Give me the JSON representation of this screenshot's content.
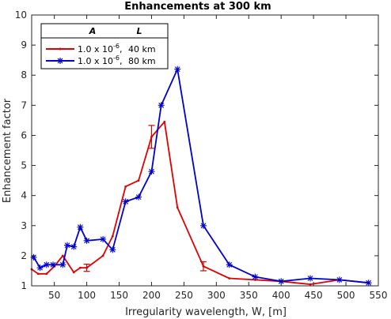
{
  "chart_data": {
    "type": "line",
    "title": "Enhancements at 300 km",
    "xlabel": "Irregularity wavelength, W, [m]",
    "ylabel": "Enhancement factor",
    "xlim": [
      15,
      550
    ],
    "ylim": [
      1,
      10
    ],
    "xticks": [
      50,
      100,
      150,
      200,
      250,
      300,
      350,
      400,
      450,
      500,
      550
    ],
    "yticks": [
      1,
      2,
      3,
      4,
      5,
      6,
      7,
      8,
      9,
      10
    ],
    "grid": false,
    "legend": {
      "placement": "top-left",
      "headers": [
        "A",
        "L"
      ],
      "entries": [
        {
          "amplitude": "1.0 x 10",
          "exponent": "-6",
          "length": "40 km"
        },
        {
          "amplitude": "1.0 x 10",
          "exponent": "-6",
          "length": "80 km"
        }
      ]
    },
    "series": [
      {
        "label": "1.0 x 10^-6, 40km",
        "color": "#e00000",
        "marker": "point",
        "x": [
          15,
          25,
          38,
          50,
          63,
          80,
          90,
          100,
          125,
          140,
          160,
          180,
          200,
          220,
          240,
          280,
          320,
          360,
          400,
          445,
          490,
          535
        ],
        "y": [
          1.55,
          1.4,
          1.4,
          1.65,
          2.0,
          1.45,
          1.6,
          1.6,
          2.0,
          2.65,
          4.3,
          4.5,
          5.95,
          6.45,
          3.6,
          1.65,
          1.25,
          1.2,
          1.15,
          1.05,
          1.2,
          1.1
        ],
        "errorbars": [
          {
            "x": 100,
            "y": 1.6,
            "err": 0.12
          },
          {
            "x": 200,
            "y": 5.95,
            "err": 0.38
          },
          {
            "x": 280,
            "y": 1.65,
            "err": 0.15
          }
        ]
      },
      {
        "label": "1.0 x 10^-6, 80km",
        "color": "#0000d0",
        "marker": "asterisk",
        "x": [
          18,
          28,
          38,
          48,
          63,
          70,
          80,
          90,
          100,
          125,
          140,
          160,
          180,
          200,
          215,
          240,
          280,
          320,
          360,
          400,
          445,
          490,
          535
        ],
        "y": [
          1.95,
          1.6,
          1.7,
          1.7,
          1.7,
          2.35,
          2.3,
          2.95,
          2.5,
          2.55,
          2.2,
          3.8,
          3.95,
          4.8,
          7.0,
          8.2,
          3.0,
          1.7,
          1.3,
          1.15,
          1.25,
          1.2,
          1.1
        ]
      }
    ]
  }
}
